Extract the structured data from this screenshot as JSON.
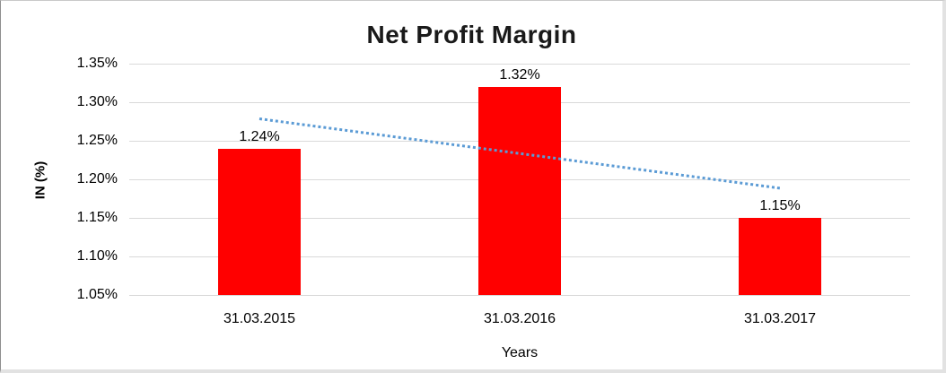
{
  "chart_data": {
    "type": "bar",
    "title": "Net Profit Margin",
    "xlabel": "Years",
    "ylabel": "IN (%)",
    "categories": [
      "31.03.2015",
      "31.03.2016",
      "31.03.2017"
    ],
    "values": [
      1.24,
      1.32,
      1.15
    ],
    "data_labels": [
      "1.24%",
      "1.32%",
      "1.15%"
    ],
    "y_ticks": [
      1.35,
      1.3,
      1.25,
      1.2,
      1.15,
      1.1,
      1.05
    ],
    "y_tick_labels": [
      "1.35%",
      "1.30%",
      "1.25%",
      "1.20%",
      "1.15%",
      "1.10%",
      "1.05%"
    ],
    "ylim": [
      1.05,
      1.35
    ],
    "grid": "horizontal",
    "legend": "none",
    "bar_color": "#ff0000",
    "gridline_color": "#d9d9d9",
    "trendline": {
      "type": "linear",
      "style": "dotted",
      "color": "#5b9bd5",
      "start_value": 1.28,
      "end_value": 1.19
    }
  }
}
